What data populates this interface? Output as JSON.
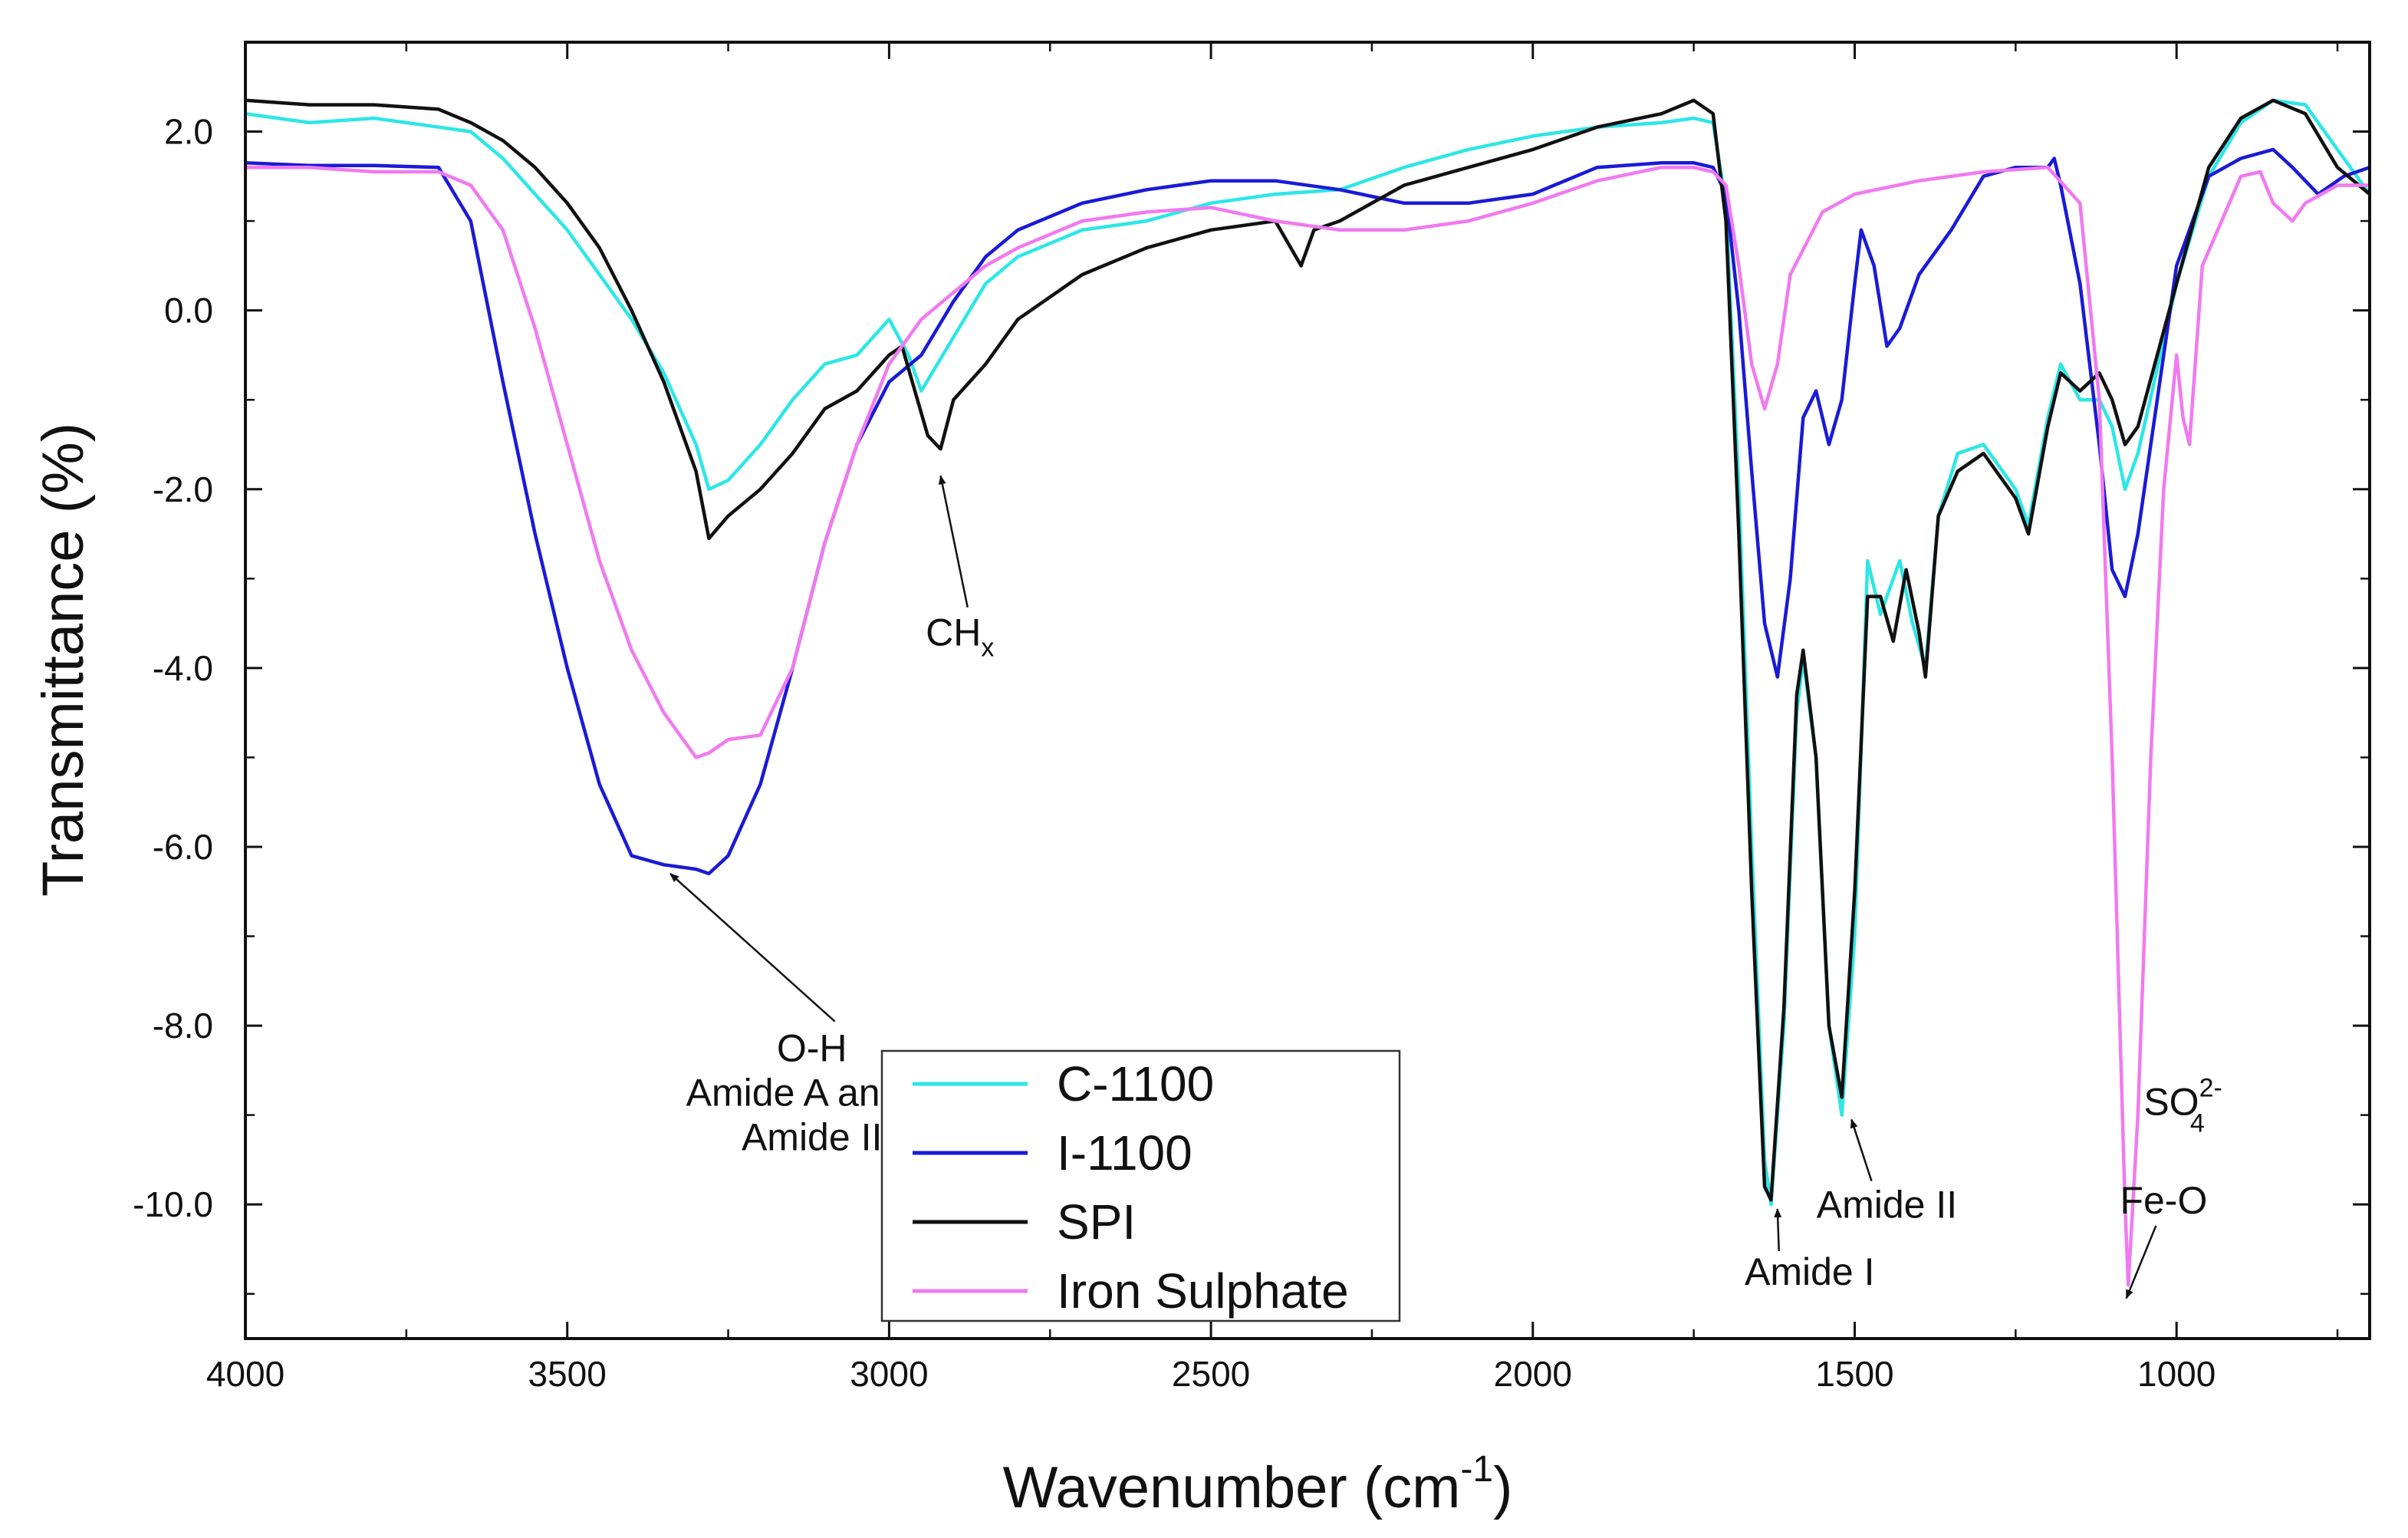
{
  "chart_data": {
    "type": "line",
    "title": "",
    "xlabel": "Wavenumber (cm",
    "xlabel_sup": "-1",
    "xlabel_close": ")",
    "ylabel": "Transmittance (%)",
    "xlim": [
      4000,
      700
    ],
    "ylim": [
      -11.5,
      3.0
    ],
    "x_ticks": [
      4000,
      3500,
      3000,
      2500,
      2000,
      1500,
      1000
    ],
    "x_tick_labels": [
      "4000",
      "3500",
      "3000",
      "2500",
      "2000",
      "1500",
      "1000"
    ],
    "y_ticks": [
      2,
      0,
      -2,
      -4,
      -6,
      -8,
      -10
    ],
    "y_tick_labels": [
      "2.0",
      "0.0",
      "-2.0",
      "-4.0",
      "-6.0",
      "-8.0",
      "-10.0"
    ],
    "legend": [
      "C-1100",
      "I-1100",
      "SPI",
      "Iron Sulphate"
    ],
    "series": [
      {
        "name": "C-1100",
        "color": "#2ee6e6",
        "points": [
          [
            4000,
            2.2
          ],
          [
            3900,
            2.1
          ],
          [
            3800,
            2.15
          ],
          [
            3700,
            2.05
          ],
          [
            3650,
            2.0
          ],
          [
            3600,
            1.7
          ],
          [
            3550,
            1.3
          ],
          [
            3500,
            0.9
          ],
          [
            3450,
            0.4
          ],
          [
            3400,
            -0.1
          ],
          [
            3350,
            -0.7
          ],
          [
            3300,
            -1.5
          ],
          [
            3280,
            -2.0
          ],
          [
            3250,
            -1.9
          ],
          [
            3200,
            -1.5
          ],
          [
            3150,
            -1.0
          ],
          [
            3100,
            -0.6
          ],
          [
            3050,
            -0.5
          ],
          [
            3000,
            -0.1
          ],
          [
            2970,
            -0.5
          ],
          [
            2950,
            -0.9
          ],
          [
            2900,
            -0.3
          ],
          [
            2850,
            0.3
          ],
          [
            2800,
            0.6
          ],
          [
            2700,
            0.9
          ],
          [
            2600,
            1.0
          ],
          [
            2500,
            1.2
          ],
          [
            2400,
            1.3
          ],
          [
            2300,
            1.35
          ],
          [
            2200,
            1.6
          ],
          [
            2100,
            1.8
          ],
          [
            2000,
            1.95
          ],
          [
            1900,
            2.05
          ],
          [
            1800,
            2.1
          ],
          [
            1750,
            2.15
          ],
          [
            1720,
            2.1
          ],
          [
            1700,
            1.2
          ],
          [
            1680,
            -2.0
          ],
          [
            1660,
            -6.0
          ],
          [
            1640,
            -9.5
          ],
          [
            1630,
            -10.0
          ],
          [
            1610,
            -8.0
          ],
          [
            1590,
            -4.5
          ],
          [
            1580,
            -3.9
          ],
          [
            1560,
            -5.0
          ],
          [
            1540,
            -8.0
          ],
          [
            1520,
            -9.0
          ],
          [
            1500,
            -7.0
          ],
          [
            1480,
            -2.8
          ],
          [
            1460,
            -3.4
          ],
          [
            1430,
            -2.8
          ],
          [
            1410,
            -3.5
          ],
          [
            1390,
            -4.0
          ],
          [
            1370,
            -2.3
          ],
          [
            1340,
            -1.6
          ],
          [
            1300,
            -1.5
          ],
          [
            1250,
            -2.0
          ],
          [
            1230,
            -2.4
          ],
          [
            1200,
            -1.2
          ],
          [
            1180,
            -0.6
          ],
          [
            1150,
            -1.0
          ],
          [
            1120,
            -1.0
          ],
          [
            1100,
            -1.3
          ],
          [
            1080,
            -2.0
          ],
          [
            1060,
            -1.6
          ],
          [
            1000,
            0.3
          ],
          [
            950,
            1.5
          ],
          [
            900,
            2.1
          ],
          [
            850,
            2.35
          ],
          [
            800,
            2.3
          ],
          [
            750,
            1.8
          ],
          [
            700,
            1.3
          ]
        ]
      },
      {
        "name": "I-1100",
        "color": "#1a1ad6",
        "points": [
          [
            4000,
            1.65
          ],
          [
            3900,
            1.62
          ],
          [
            3800,
            1.62
          ],
          [
            3700,
            1.6
          ],
          [
            3650,
            1.0
          ],
          [
            3600,
            -0.8
          ],
          [
            3550,
            -2.5
          ],
          [
            3500,
            -4.0
          ],
          [
            3450,
            -5.3
          ],
          [
            3400,
            -6.1
          ],
          [
            3350,
            -6.2
          ],
          [
            3300,
            -6.25
          ],
          [
            3280,
            -6.3
          ],
          [
            3250,
            -6.1
          ],
          [
            3200,
            -5.3
          ],
          [
            3150,
            -4.0
          ],
          [
            3100,
            -2.6
          ],
          [
            3050,
            -1.5
          ],
          [
            3000,
            -0.8
          ],
          [
            2950,
            -0.5
          ],
          [
            2900,
            0.1
          ],
          [
            2850,
            0.6
          ],
          [
            2800,
            0.9
          ],
          [
            2700,
            1.2
          ],
          [
            2600,
            1.35
          ],
          [
            2500,
            1.45
          ],
          [
            2400,
            1.45
          ],
          [
            2300,
            1.35
          ],
          [
            2200,
            1.2
          ],
          [
            2100,
            1.2
          ],
          [
            2000,
            1.3
          ],
          [
            1900,
            1.6
          ],
          [
            1800,
            1.65
          ],
          [
            1750,
            1.65
          ],
          [
            1720,
            1.6
          ],
          [
            1700,
            1.3
          ],
          [
            1680,
            0.0
          ],
          [
            1660,
            -1.8
          ],
          [
            1640,
            -3.5
          ],
          [
            1620,
            -4.1
          ],
          [
            1600,
            -3.0
          ],
          [
            1580,
            -1.2
          ],
          [
            1560,
            -0.9
          ],
          [
            1540,
            -1.5
          ],
          [
            1520,
            -1.0
          ],
          [
            1500,
            0.3
          ],
          [
            1490,
            0.9
          ],
          [
            1470,
            0.5
          ],
          [
            1450,
            -0.4
          ],
          [
            1430,
            -0.2
          ],
          [
            1400,
            0.4
          ],
          [
            1350,
            0.9
          ],
          [
            1300,
            1.5
          ],
          [
            1250,
            1.6
          ],
          [
            1200,
            1.6
          ],
          [
            1190,
            1.7
          ],
          [
            1180,
            1.4
          ],
          [
            1150,
            0.3
          ],
          [
            1120,
            -1.5
          ],
          [
            1100,
            -2.9
          ],
          [
            1080,
            -3.2
          ],
          [
            1060,
            -2.5
          ],
          [
            1000,
            0.5
          ],
          [
            950,
            1.5
          ],
          [
            900,
            1.7
          ],
          [
            850,
            1.8
          ],
          [
            820,
            1.6
          ],
          [
            780,
            1.3
          ],
          [
            740,
            1.5
          ],
          [
            700,
            1.6
          ]
        ]
      },
      {
        "name": "SPI",
        "color": "#111111",
        "points": [
          [
            4000,
            2.35
          ],
          [
            3900,
            2.3
          ],
          [
            3800,
            2.3
          ],
          [
            3700,
            2.25
          ],
          [
            3650,
            2.1
          ],
          [
            3600,
            1.9
          ],
          [
            3550,
            1.6
          ],
          [
            3500,
            1.2
          ],
          [
            3450,
            0.7
          ],
          [
            3400,
            0.0
          ],
          [
            3350,
            -0.8
          ],
          [
            3300,
            -1.8
          ],
          [
            3280,
            -2.55
          ],
          [
            3250,
            -2.3
          ],
          [
            3200,
            -2.0
          ],
          [
            3150,
            -1.6
          ],
          [
            3100,
            -1.1
          ],
          [
            3050,
            -0.9
          ],
          [
            3000,
            -0.5
          ],
          [
            2980,
            -0.4
          ],
          [
            2960,
            -0.9
          ],
          [
            2940,
            -1.4
          ],
          [
            2920,
            -1.55
          ],
          [
            2900,
            -1.0
          ],
          [
            2850,
            -0.6
          ],
          [
            2800,
            -0.1
          ],
          [
            2700,
            0.4
          ],
          [
            2600,
            0.7
          ],
          [
            2500,
            0.9
          ],
          [
            2400,
            1.0
          ],
          [
            2360,
            0.5
          ],
          [
            2340,
            0.9
          ],
          [
            2300,
            1.0
          ],
          [
            2200,
            1.4
          ],
          [
            2100,
            1.6
          ],
          [
            2000,
            1.8
          ],
          [
            1900,
            2.05
          ],
          [
            1800,
            2.2
          ],
          [
            1750,
            2.35
          ],
          [
            1720,
            2.2
          ],
          [
            1700,
            1.0
          ],
          [
            1680,
            -2.5
          ],
          [
            1660,
            -6.5
          ],
          [
            1640,
            -9.8
          ],
          [
            1630,
            -9.95
          ],
          [
            1610,
            -7.8
          ],
          [
            1590,
            -4.3
          ],
          [
            1580,
            -3.8
          ],
          [
            1560,
            -5.0
          ],
          [
            1540,
            -8.0
          ],
          [
            1520,
            -8.8
          ],
          [
            1500,
            -6.5
          ],
          [
            1480,
            -3.2
          ],
          [
            1460,
            -3.2
          ],
          [
            1440,
            -3.7
          ],
          [
            1420,
            -2.9
          ],
          [
            1400,
            -3.6
          ],
          [
            1390,
            -4.1
          ],
          [
            1370,
            -2.3
          ],
          [
            1340,
            -1.8
          ],
          [
            1300,
            -1.6
          ],
          [
            1250,
            -2.1
          ],
          [
            1230,
            -2.5
          ],
          [
            1200,
            -1.3
          ],
          [
            1180,
            -0.7
          ],
          [
            1150,
            -0.9
          ],
          [
            1120,
            -0.7
          ],
          [
            1100,
            -1.0
          ],
          [
            1080,
            -1.5
          ],
          [
            1060,
            -1.3
          ],
          [
            1000,
            0.3
          ],
          [
            950,
            1.6
          ],
          [
            900,
            2.15
          ],
          [
            850,
            2.35
          ],
          [
            800,
            2.2
          ],
          [
            750,
            1.6
          ],
          [
            700,
            1.3
          ]
        ]
      },
      {
        "name": "Iron Sulphate",
        "color": "#f07af0",
        "points": [
          [
            4000,
            1.6
          ],
          [
            3900,
            1.6
          ],
          [
            3800,
            1.55
          ],
          [
            3700,
            1.55
          ],
          [
            3650,
            1.4
          ],
          [
            3600,
            0.9
          ],
          [
            3550,
            -0.2
          ],
          [
            3500,
            -1.5
          ],
          [
            3450,
            -2.8
          ],
          [
            3400,
            -3.8
          ],
          [
            3350,
            -4.5
          ],
          [
            3300,
            -5.0
          ],
          [
            3280,
            -4.95
          ],
          [
            3250,
            -4.8
          ],
          [
            3200,
            -4.75
          ],
          [
            3150,
            -4.0
          ],
          [
            3100,
            -2.6
          ],
          [
            3050,
            -1.5
          ],
          [
            3000,
            -0.6
          ],
          [
            2950,
            -0.1
          ],
          [
            2900,
            0.2
          ],
          [
            2850,
            0.5
          ],
          [
            2800,
            0.7
          ],
          [
            2700,
            1.0
          ],
          [
            2600,
            1.1
          ],
          [
            2500,
            1.15
          ],
          [
            2400,
            1.0
          ],
          [
            2300,
            0.9
          ],
          [
            2200,
            0.9
          ],
          [
            2100,
            1.0
          ],
          [
            2000,
            1.2
          ],
          [
            1900,
            1.45
          ],
          [
            1800,
            1.6
          ],
          [
            1750,
            1.6
          ],
          [
            1720,
            1.55
          ],
          [
            1700,
            1.4
          ],
          [
            1680,
            0.5
          ],
          [
            1660,
            -0.6
          ],
          [
            1640,
            -1.1
          ],
          [
            1620,
            -0.6
          ],
          [
            1600,
            0.4
          ],
          [
            1550,
            1.1
          ],
          [
            1500,
            1.3
          ],
          [
            1400,
            1.45
          ],
          [
            1300,
            1.55
          ],
          [
            1200,
            1.6
          ],
          [
            1150,
            1.2
          ],
          [
            1120,
            -1.0
          ],
          [
            1100,
            -5.0
          ],
          [
            1080,
            -10.0
          ],
          [
            1075,
            -10.9
          ],
          [
            1060,
            -9.0
          ],
          [
            1040,
            -5.0
          ],
          [
            1020,
            -2.0
          ],
          [
            1000,
            -0.5
          ],
          [
            990,
            -1.2
          ],
          [
            980,
            -1.5
          ],
          [
            960,
            0.5
          ],
          [
            900,
            1.5
          ],
          [
            870,
            1.55
          ],
          [
            850,
            1.2
          ],
          [
            820,
            1.0
          ],
          [
            800,
            1.2
          ],
          [
            750,
            1.4
          ],
          [
            700,
            1.4
          ]
        ]
      }
    ],
    "annotations": [
      {
        "lines": [
          "O-H",
          "Amide A and B",
          "Amide II"
        ],
        "target": [
          3340,
          -6.3
        ],
        "text_at": [
          3120,
          -8.4
        ]
      },
      {
        "lines": [
          "CH"
        ],
        "sub": "x",
        "target": [
          2920,
          -1.85
        ],
        "text_at": [
          2890,
          -3.75
        ]
      },
      {
        "lines": [
          "Amide I"
        ],
        "target": [
          1620,
          -10.05
        ],
        "text_at": [
          1570,
          -10.9
        ]
      },
      {
        "lines": [
          "Amide II"
        ],
        "target": [
          1505,
          -9.05
        ],
        "text_at": [
          1450,
          -10.15
        ]
      },
      {
        "lines": [
          "Fe-O"
        ],
        "target": [
          1078,
          -11.05
        ],
        "text_at": [
          1020,
          -10.1
        ]
      },
      {
        "lines": [
          "SO"
        ],
        "sub": "4",
        "sup": "2-",
        "text_at": [
          990,
          -9.0
        ]
      }
    ]
  }
}
